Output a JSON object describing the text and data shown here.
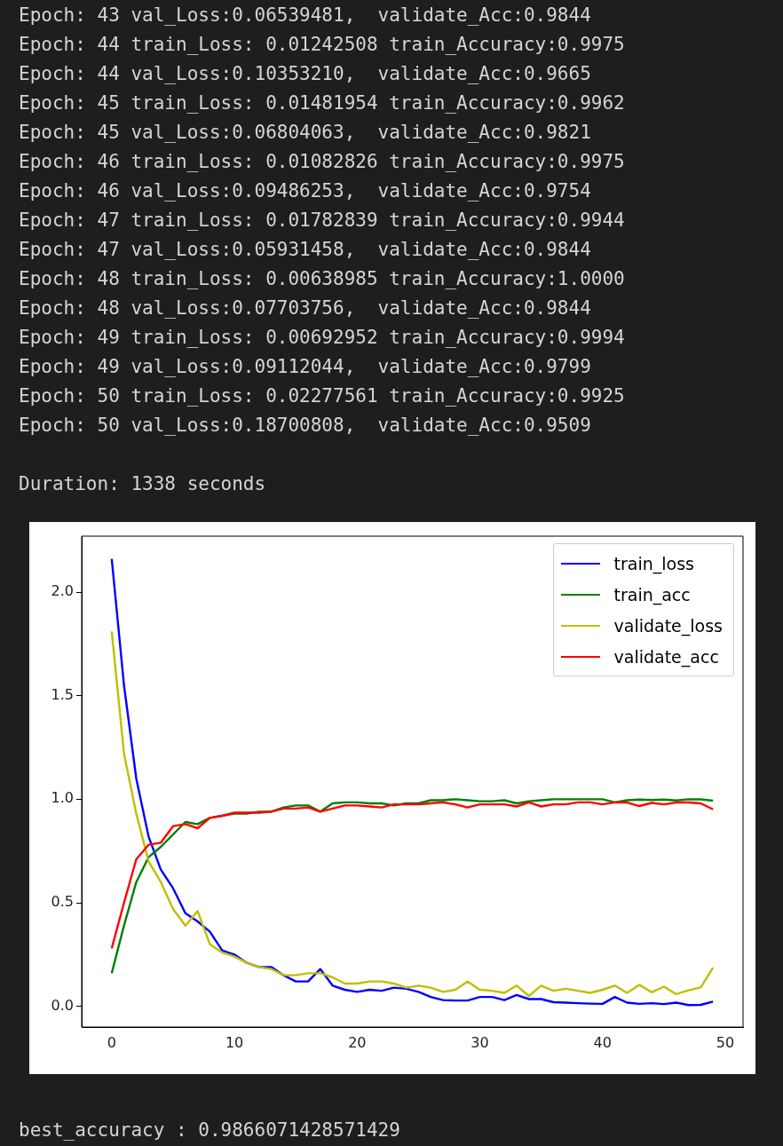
{
  "chart_data": {
    "type": "line",
    "x": [
      0,
      1,
      2,
      3,
      4,
      5,
      6,
      7,
      8,
      9,
      10,
      11,
      12,
      13,
      14,
      15,
      16,
      17,
      18,
      19,
      20,
      21,
      22,
      23,
      24,
      25,
      26,
      27,
      28,
      29,
      30,
      31,
      32,
      33,
      34,
      35,
      36,
      37,
      38,
      39,
      40,
      41,
      42,
      43,
      44,
      45,
      46,
      47,
      48,
      49
    ],
    "series": [
      {
        "name": "train_loss",
        "color": "#0000ff",
        "values": [
          2.16,
          1.55,
          1.1,
          0.82,
          0.66,
          0.57,
          0.45,
          0.41,
          0.36,
          0.27,
          0.25,
          0.21,
          0.19,
          0.19,
          0.15,
          0.12,
          0.12,
          0.18,
          0.1,
          0.08,
          0.07,
          0.08,
          0.075,
          0.09,
          0.085,
          0.07,
          0.045,
          0.03,
          0.028,
          0.028,
          0.045,
          0.045,
          0.03,
          0.055,
          0.035,
          0.035,
          0.02,
          0.018,
          0.015,
          0.013,
          0.012,
          0.045,
          0.018,
          0.012,
          0.015,
          0.011,
          0.018,
          0.006,
          0.007,
          0.023
        ]
      },
      {
        "name": "train_acc",
        "color": "#008000",
        "values": [
          0.16,
          0.39,
          0.6,
          0.72,
          0.77,
          0.83,
          0.89,
          0.88,
          0.91,
          0.92,
          0.93,
          0.93,
          0.94,
          0.94,
          0.96,
          0.97,
          0.97,
          0.94,
          0.98,
          0.985,
          0.985,
          0.98,
          0.98,
          0.97,
          0.98,
          0.98,
          0.995,
          0.995,
          1.0,
          0.995,
          0.99,
          0.99,
          0.995,
          0.98,
          0.99,
          0.995,
          1.0,
          1.0,
          1.0,
          1.0,
          1.0,
          0.985,
          0.995,
          0.998,
          0.996,
          0.998,
          0.994,
          1.0,
          0.999,
          0.993
        ]
      },
      {
        "name": "validate_loss",
        "color": "#bfbf00",
        "values": [
          1.81,
          1.22,
          0.93,
          0.7,
          0.6,
          0.47,
          0.39,
          0.46,
          0.3,
          0.26,
          0.24,
          0.21,
          0.19,
          0.18,
          0.15,
          0.15,
          0.16,
          0.16,
          0.14,
          0.11,
          0.11,
          0.12,
          0.12,
          0.11,
          0.09,
          0.1,
          0.09,
          0.07,
          0.08,
          0.12,
          0.08,
          0.075,
          0.065,
          0.1,
          0.05,
          0.1,
          0.075,
          0.085,
          0.075,
          0.065,
          0.08,
          0.1,
          0.065,
          0.104,
          0.068,
          0.095,
          0.059,
          0.077,
          0.091,
          0.187
        ]
      },
      {
        "name": "validate_acc",
        "color": "#ff0000",
        "values": [
          0.28,
          0.5,
          0.71,
          0.78,
          0.79,
          0.87,
          0.88,
          0.86,
          0.91,
          0.92,
          0.935,
          0.935,
          0.935,
          0.94,
          0.955,
          0.955,
          0.96,
          0.94,
          0.955,
          0.97,
          0.97,
          0.965,
          0.96,
          0.975,
          0.975,
          0.975,
          0.98,
          0.985,
          0.975,
          0.96,
          0.975,
          0.975,
          0.975,
          0.965,
          0.985,
          0.965,
          0.975,
          0.975,
          0.985,
          0.985,
          0.975,
          0.985,
          0.984,
          0.967,
          0.982,
          0.975,
          0.984,
          0.984,
          0.98,
          0.951
        ]
      }
    ],
    "xlim": [
      -2.45,
      51.45
    ],
    "ylim": [
      -0.1,
      2.27
    ],
    "xticks": [
      0,
      10,
      20,
      30,
      40,
      50
    ],
    "yticks": [
      {
        "value": 0,
        "label": "0.0"
      },
      {
        "value": 0.5,
        "label": "0.5"
      },
      {
        "value": 1,
        "label": "1.0"
      },
      {
        "value": 1.5,
        "label": "1.5"
      },
      {
        "value": 2,
        "label": "2.0"
      }
    ],
    "legend": "top right",
    "annotations": [
      "Epoch: 43 val_Loss:0.06539481,  validate_Acc:0.9844",
      "Epoch: 44 train_Loss: 0.01242508 train_Accuracy:0.9975",
      "Epoch: 44 val_Loss:0.10353210,  validate_Acc:0.9665",
      "Epoch: 45 train_Loss: 0.01481954 train_Accuracy:0.9962",
      "Epoch: 45 val_Loss:0.06804063,  validate_Acc:0.9821",
      "Epoch: 46 train_Loss: 0.01082826 train_Accuracy:0.9975",
      "Epoch: 46 val_Loss:0.09486253,  validate_Acc:0.9754",
      "Epoch: 47 train_Loss: 0.01782839 train_Accuracy:0.9944",
      "Epoch: 47 val_Loss:0.05931458,  validate_Acc:0.9844",
      "Epoch: 48 train_Loss: 0.00638985 train_Accuracy:1.0000",
      "Epoch: 48 val_Loss:0.07703756,  validate_Acc:0.9844",
      "Epoch: 49 train_Loss: 0.00692952 train_Accuracy:0.9994",
      "Epoch: 49 val_Loss:0.09112044,  validate_Acc:0.9799",
      "Epoch: 50 train_Loss: 0.02277561 train_Accuracy:0.9925",
      "Epoch: 50 val_Loss:0.18700808,  validate_Acc:0.9509",
      "Duration: 1338 seconds",
      "best_accuracy : 0.9866071428571429"
    ]
  }
}
